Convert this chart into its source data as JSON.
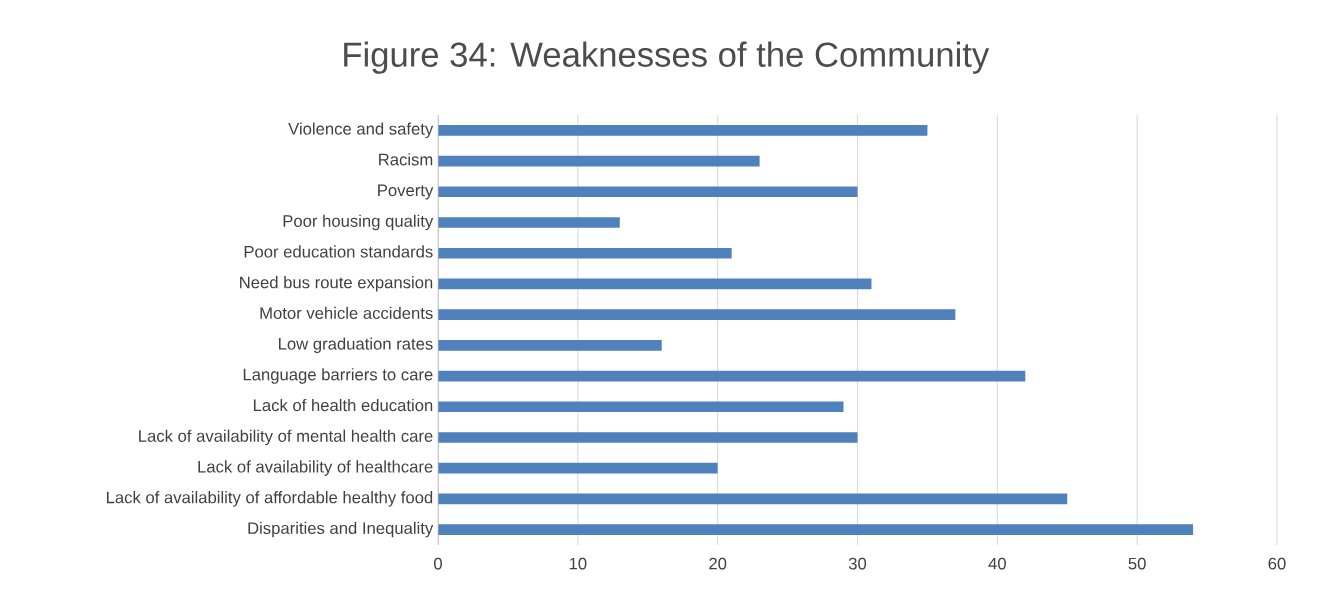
{
  "chart_data": {
    "type": "bar",
    "orientation": "horizontal",
    "title": "Figure 34: Weaknesses of the Community",
    "categories": [
      "Violence and safety",
      "Racism",
      "Poverty",
      "Poor housing quality",
      "Poor education standards",
      "Need bus route expansion",
      "Motor vehicle accidents",
      "Low graduation rates",
      "Language barriers to care",
      "Lack of health education",
      "Lack of availability of mental health care",
      "Lack of availability of healthcare",
      "Lack of availability of affordable healthy food",
      "Disparities and Inequality"
    ],
    "values": [
      35,
      23,
      30,
      13,
      21,
      31,
      37,
      16,
      42,
      29,
      30,
      20,
      45,
      54
    ],
    "color": "#4f81bd",
    "xlim": [
      0,
      60
    ],
    "xticks": [
      0,
      10,
      20,
      30,
      40,
      50,
      60
    ],
    "grid": "x"
  }
}
